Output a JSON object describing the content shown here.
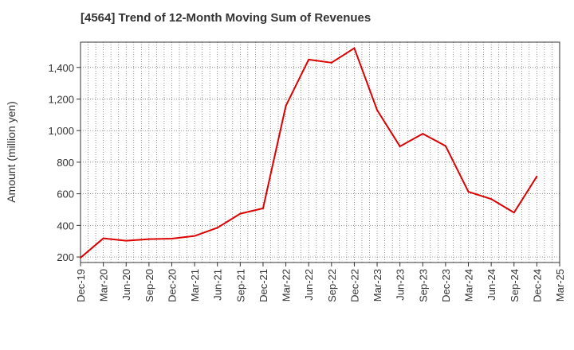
{
  "chart_data": {
    "type": "line",
    "title": "[4564]  Trend of 12-Month Moving Sum of Revenues",
    "xlabel": "",
    "ylabel": "Amount (million yen)",
    "ylim": [
      165,
      1560
    ],
    "yticks": [
      200,
      400,
      600,
      800,
      1000,
      1200,
      1400
    ],
    "ytick_labels": [
      "200",
      "400",
      "600",
      "800",
      "1,000",
      "1,200",
      "1,400"
    ],
    "xtick_labels": [
      "Dec-19",
      "Mar-20",
      "Jun-20",
      "Sep-20",
      "Dec-20",
      "Mar-21",
      "Jun-21",
      "Sep-21",
      "Dec-21",
      "Mar-22",
      "Jun-22",
      "Sep-22",
      "Dec-22",
      "Mar-23",
      "Jun-23",
      "Sep-23",
      "Dec-23",
      "Mar-24",
      "Jun-24",
      "Sep-24",
      "Dec-24",
      "Mar-25"
    ],
    "grid": true,
    "line_color": "#dd0000",
    "series": [
      {
        "x": [
          "Dec-19",
          "Mar-20",
          "Jun-20",
          "Sep-20",
          "Dec-20",
          "Mar-21",
          "Jun-21",
          "Sep-21",
          "Dec-21",
          "Mar-22",
          "Jun-22",
          "Sep-22",
          "Dec-22",
          "Mar-23",
          "Jun-23",
          "Sep-23",
          "Dec-23",
          "Mar-24",
          "Jun-24",
          "Sep-24",
          "Dec-24"
        ],
        "values": [
          195,
          318,
          303,
          313,
          316,
          333,
          385,
          474,
          508,
          1157,
          1450,
          1430,
          1522,
          1130,
          900,
          980,
          903,
          613,
          567,
          481,
          710
        ]
      }
    ]
  }
}
